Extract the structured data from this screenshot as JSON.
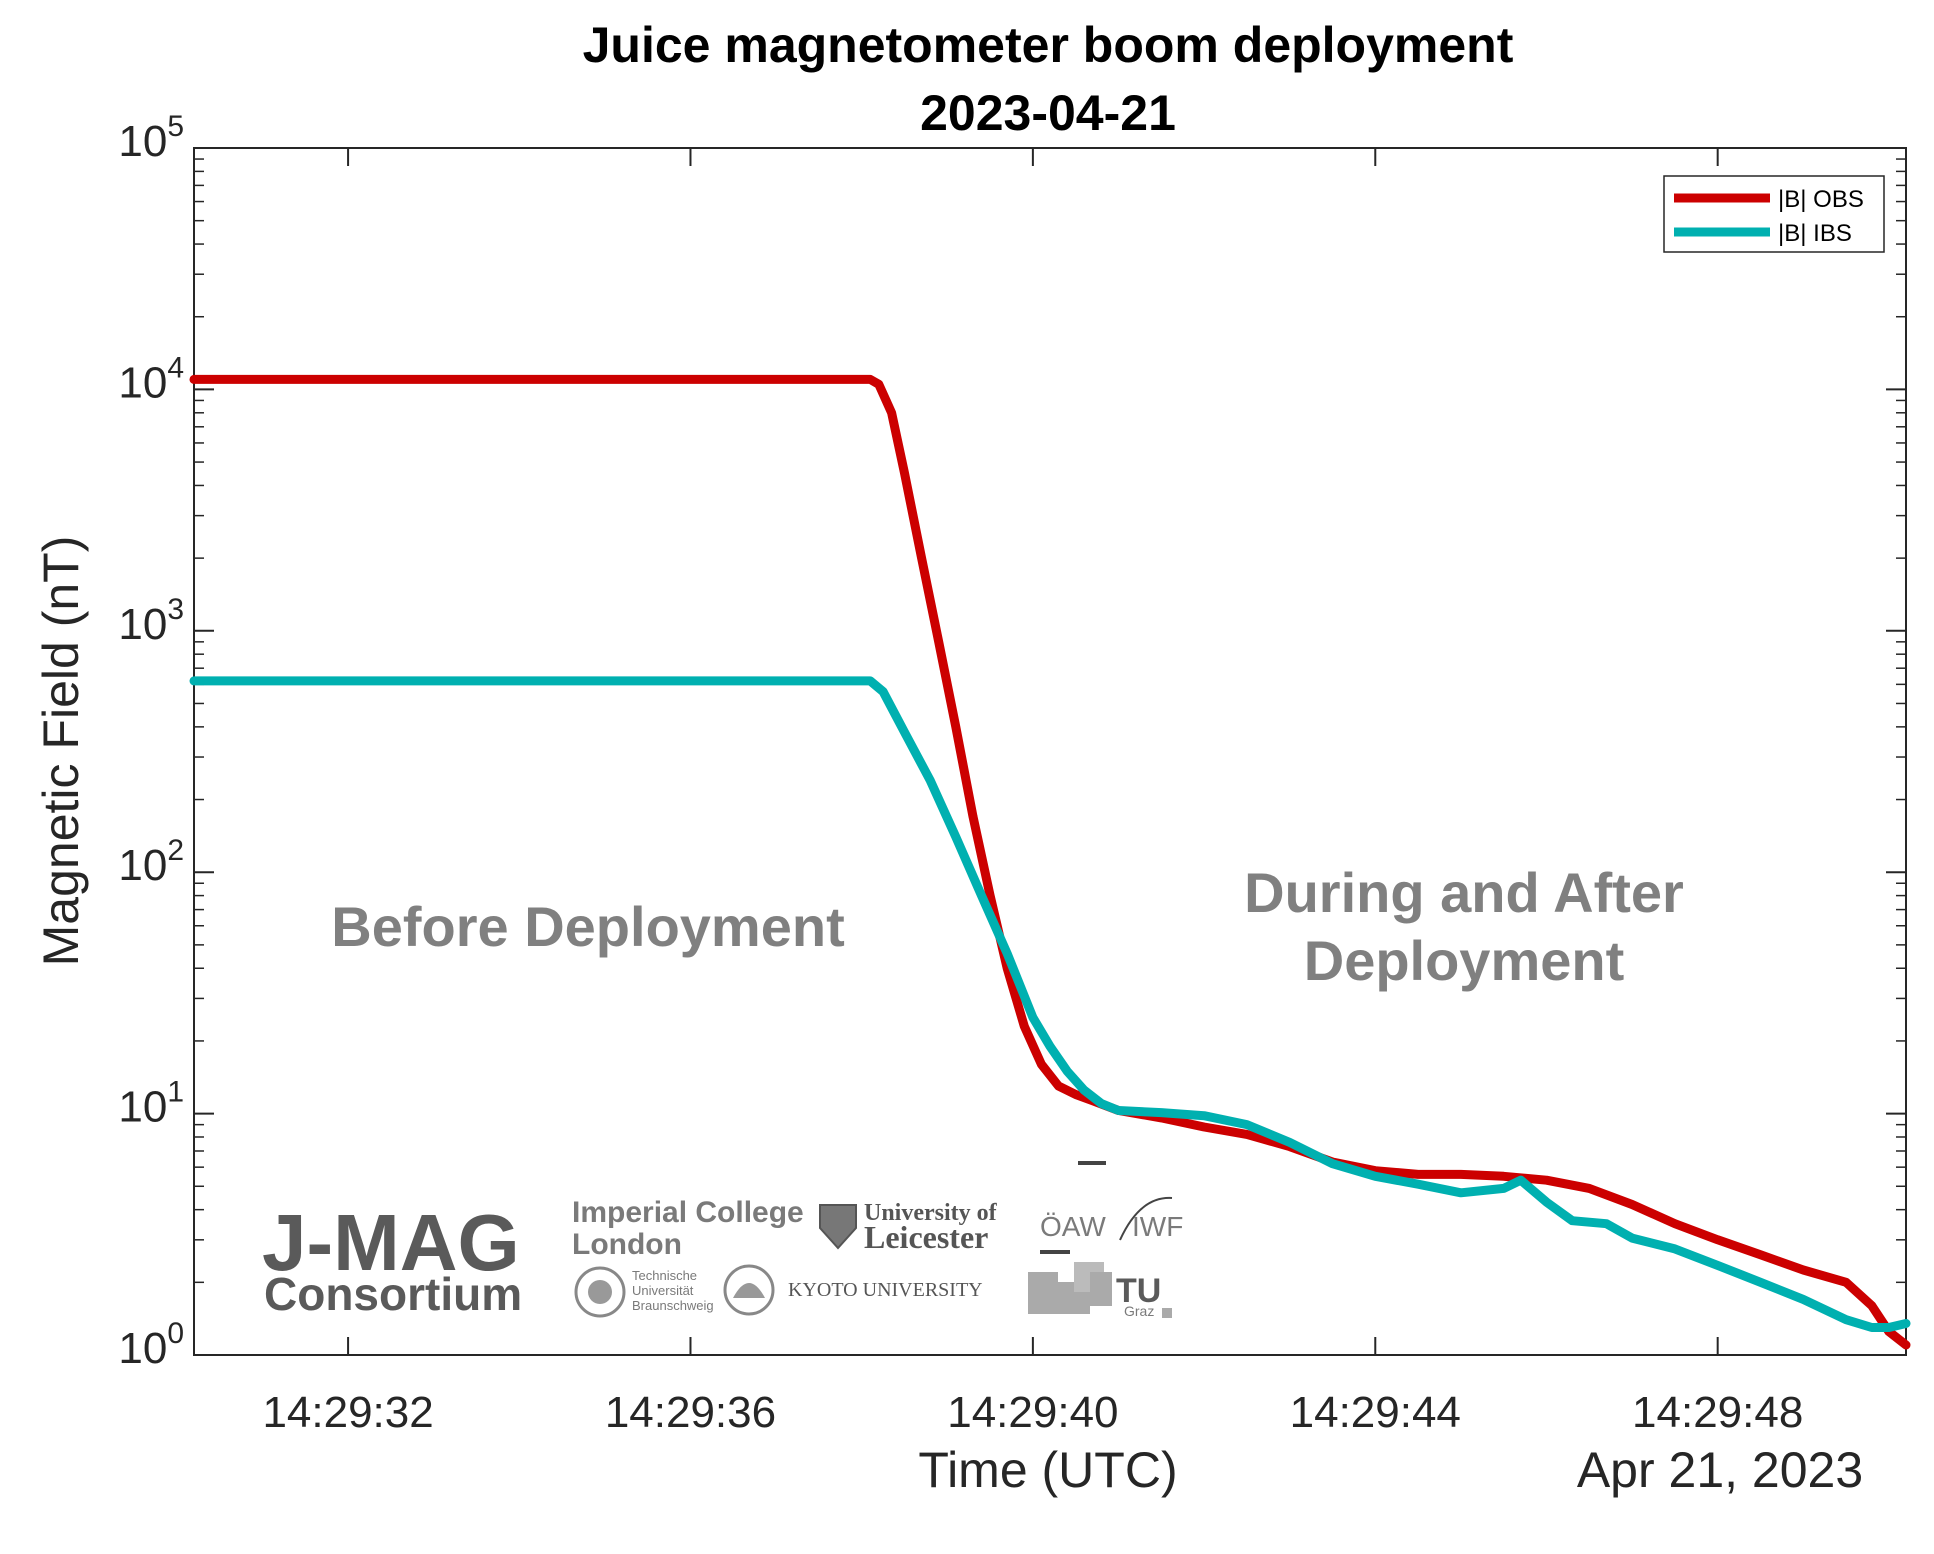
{
  "chart_data": {
    "type": "line",
    "title": "Juice magnetometer boom deployment",
    "subtitle": "2023-04-21",
    "xlabel": "Time (UTC)",
    "ylabel": "Magnetic Field (nT)",
    "x_date_label": "Apr 21, 2023",
    "yscale": "log",
    "ylim": [
      1,
      100000
    ],
    "xlim": [
      30.2,
      50.2
    ],
    "x_units": "seconds after 14:29:00",
    "x_ticks": [
      {
        "value": 32,
        "label": "14:29:32"
      },
      {
        "value": 36,
        "label": "14:29:36"
      },
      {
        "value": 40,
        "label": "14:29:40"
      },
      {
        "value": 44,
        "label": "14:29:44"
      },
      {
        "value": 48,
        "label": "14:29:48"
      }
    ],
    "y_ticks": [
      {
        "value": 1,
        "base": "10",
        "exp": "0"
      },
      {
        "value": 10,
        "base": "10",
        "exp": "1"
      },
      {
        "value": 100,
        "base": "10",
        "exp": "2"
      },
      {
        "value": 1000,
        "base": "10",
        "exp": "3"
      },
      {
        "value": 10000,
        "base": "10",
        "exp": "4"
      },
      {
        "value": 100000,
        "base": "10",
        "exp": "5"
      }
    ],
    "grid": false,
    "legend_position": "top-right",
    "series": [
      {
        "name": "|B| OBS",
        "color": "#cc0000",
        "x": [
          30.2,
          38.1,
          38.2,
          38.35,
          38.5,
          38.7,
          38.9,
          39.1,
          39.3,
          39.5,
          39.7,
          39.9,
          40.1,
          40.3,
          40.5,
          40.7,
          41.0,
          41.5,
          42.0,
          42.5,
          43.0,
          43.5,
          44.0,
          44.5,
          45.0,
          45.5,
          46.0,
          46.5,
          47.0,
          47.5,
          48.0,
          48.5,
          49.0,
          49.5,
          49.8,
          50.0,
          50.2
        ],
        "values": [
          11000,
          11000,
          10500,
          8000,
          4500,
          2000,
          900,
          400,
          170,
          80,
          40,
          23,
          16,
          13,
          12,
          11.3,
          10.3,
          9.6,
          8.8,
          8.2,
          7.3,
          6.3,
          5.8,
          5.6,
          5.6,
          5.5,
          5.3,
          4.9,
          4.2,
          3.5,
          3.0,
          2.6,
          2.25,
          2.0,
          1.6,
          1.25,
          1.1
        ]
      },
      {
        "name": "|B| IBS",
        "color": "#00b0b0",
        "x": [
          30.2,
          38.1,
          38.25,
          38.5,
          38.8,
          39.1,
          39.4,
          39.7,
          40.0,
          40.2,
          40.4,
          40.6,
          40.8,
          41.0,
          41.5,
          42.0,
          42.5,
          43.0,
          43.5,
          44.0,
          44.5,
          45.0,
          45.5,
          45.7,
          46.0,
          46.3,
          46.7,
          47.0,
          47.5,
          48.0,
          48.5,
          49.0,
          49.5,
          49.8,
          50.0,
          50.2
        ],
        "values": [
          620,
          620,
          560,
          380,
          240,
          140,
          80,
          46,
          25,
          19,
          15,
          12.5,
          11,
          10.3,
          10.1,
          9.8,
          9.0,
          7.6,
          6.2,
          5.5,
          5.1,
          4.7,
          4.9,
          5.3,
          4.3,
          3.6,
          3.5,
          3.05,
          2.75,
          2.35,
          2.0,
          1.7,
          1.4,
          1.3,
          1.3,
          1.35
        ]
      }
    ],
    "annotations": [
      {
        "text": "Before Deployment"
      },
      {
        "lines": [
          "During and After",
          "Deployment"
        ]
      }
    ]
  },
  "logos": {
    "consortium_name": "J-MAG",
    "consortium_word": "Consortium",
    "imperial_line1": "Imperial College",
    "imperial_line2": "London",
    "leicester_line1": "University of",
    "leicester_line2": "Leicester",
    "oeaw": "ÖAW",
    "iwf": "IWF",
    "tu_bs_lines": [
      "Technische",
      "Universität",
      "Braunschweig"
    ],
    "kyoto": "KYOTO UNIVERSITY",
    "tu_graz_main": "TU",
    "tu_graz_sub": "Graz"
  }
}
